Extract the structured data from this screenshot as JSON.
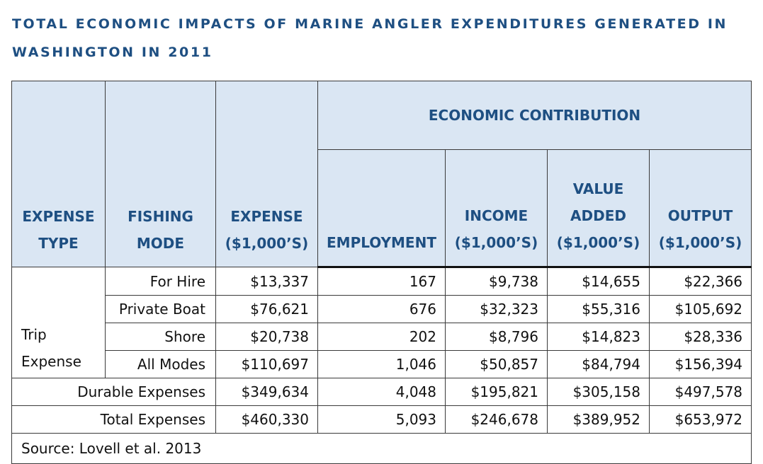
{
  "title_line1": "TOTAL ECONOMIC IMPACTS OF MARINE ANGLER EXPENDITURES GENERATED IN",
  "title_line2": "WASHINGTON IN 2011",
  "headers": {
    "expense_type_1": "EXPENSE",
    "expense_type_2": "TYPE",
    "fishing_mode_1": "FISHING",
    "fishing_mode_2": "MODE",
    "expense_1": "EXPENSE",
    "expense_2": "($1,000’S)",
    "economic_contribution": "ECONOMIC CONTRIBUTION",
    "employment": "EMPLOYMENT",
    "income_1": "INCOME",
    "income_2": "($1,000’S)",
    "value_added_1": "VALUE",
    "value_added_2": "ADDED",
    "value_added_3": "($1,000’S)",
    "output_1": "OUTPUT",
    "output_2": "($1,000’S)"
  },
  "trip_expense_1": "Trip",
  "trip_expense_2": "Expense",
  "rows": [
    {
      "mode": "For Hire",
      "expense": "$13,337",
      "employment": "167",
      "income": "$9,738",
      "value_added": "$14,655",
      "output": "$22,366"
    },
    {
      "mode": "Private Boat",
      "expense": "$76,621",
      "employment": "676",
      "income": "$32,323",
      "value_added": "$55,316",
      "output": "$105,692"
    },
    {
      "mode": "Shore",
      "expense": "$20,738",
      "employment": "202",
      "income": "$8,796",
      "value_added": "$14,823",
      "output": "$28,336"
    },
    {
      "mode": "All Modes",
      "expense": "$110,697",
      "employment": "1,046",
      "income": "$50,857",
      "value_added": "$84,794",
      "output": "$156,394"
    }
  ],
  "durable": {
    "label": "Durable Expenses",
    "expense": "$349,634",
    "employment": "4,048",
    "income": "$195,821",
    "value_added": "$305,158",
    "output": "$497,578"
  },
  "total": {
    "label": "Total Expenses",
    "expense": "$460,330",
    "employment": "5,093",
    "income": "$246,678",
    "value_added": "$389,952",
    "output": "$653,972"
  },
  "source": "Source: Lovell et al. 2013"
}
